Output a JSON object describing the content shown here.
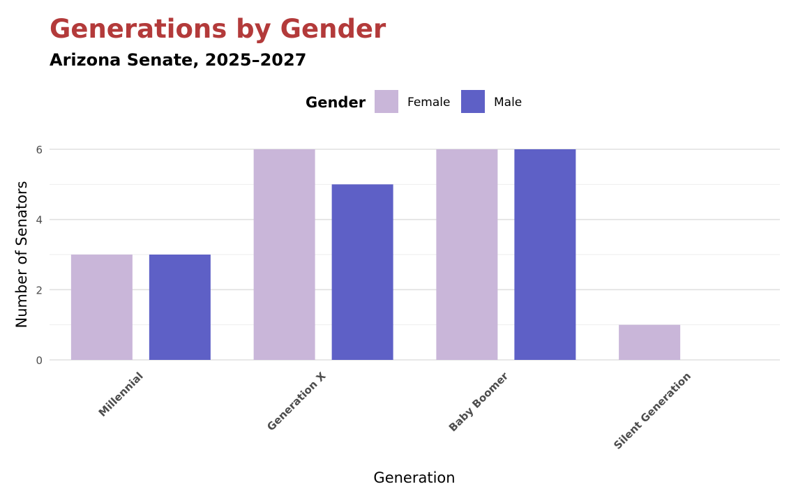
{
  "chart_data": {
    "type": "bar",
    "title": "Generations by Gender",
    "subtitle": "Arizona Senate, 2025–2027",
    "xlabel": "Generation",
    "ylabel": "Number of Senators",
    "categories": [
      "Millennial",
      "Generation X",
      "Baby Boomer",
      "Silent Generation"
    ],
    "series": [
      {
        "name": "Female",
        "color": "#c9b6d9",
        "values": [
          3,
          6,
          6,
          1
        ]
      },
      {
        "name": "Male",
        "color": "#5e60c6",
        "values": [
          3,
          5,
          6,
          0
        ]
      }
    ],
    "ylim": [
      0,
      6
    ],
    "yticks": [
      0,
      2,
      4,
      6
    ],
    "legend": {
      "title": "Gender",
      "position": "top"
    },
    "grid": true
  }
}
